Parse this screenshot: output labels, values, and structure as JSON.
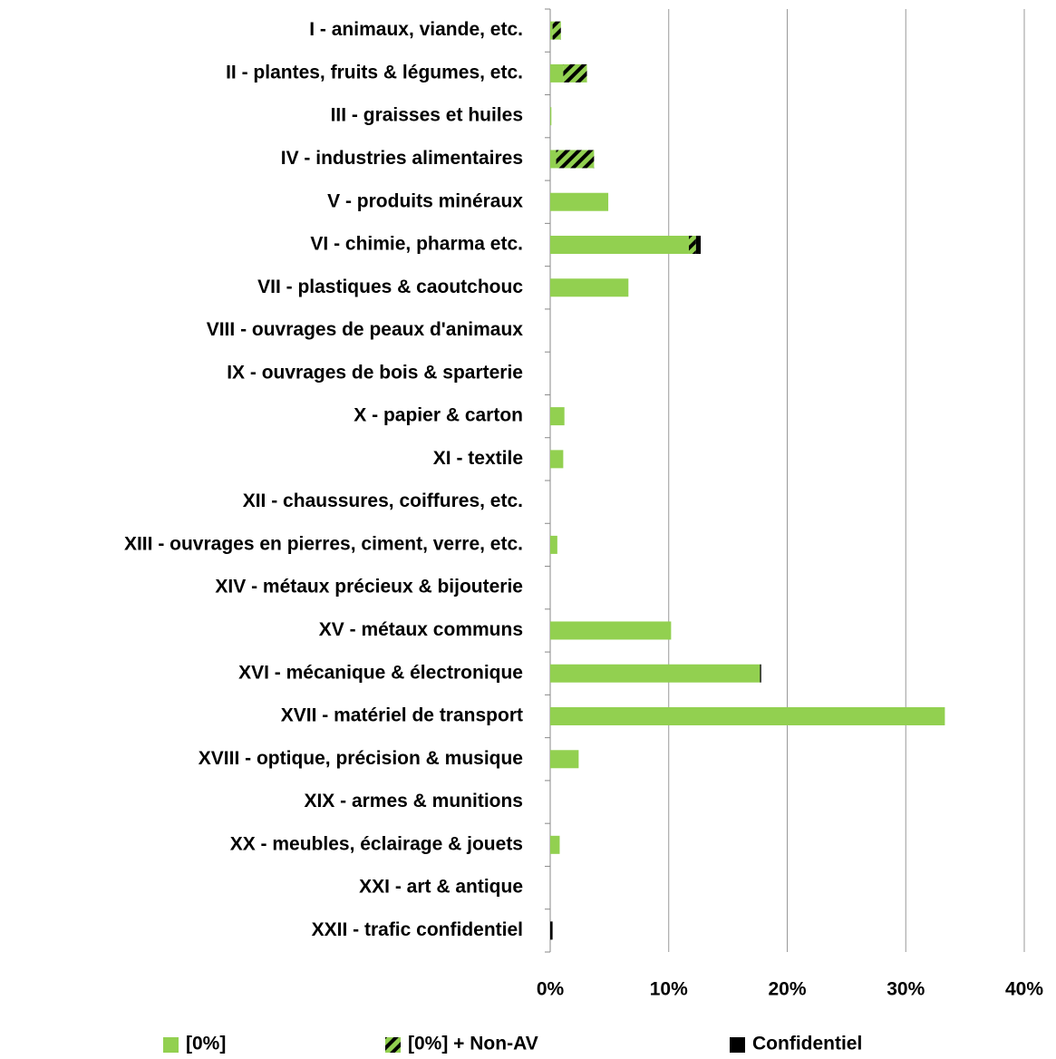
{
  "chart_data": {
    "type": "stacked_barh",
    "categories": [
      "I - animaux, viande, etc.",
      "II - plantes, fruits & légumes, etc.",
      "III - graisses et huiles",
      "IV - industries alimentaires",
      "V - produits minéraux",
      "VI - chimie, pharma etc.",
      "VII - plastiques & caoutchouc",
      "VIII - ouvrages de peaux d'animaux",
      "IX - ouvrages de bois & sparterie",
      "X - papier & carton",
      "XI - textile",
      "XII - chaussures, coiffures, etc.",
      "XIII - ouvrages en pierres, ciment, verre, etc.",
      "XIV - métaux précieux & bijouterie",
      "XV - métaux communs",
      "XVI - mécanique & électronique",
      "XVII - matériel de transport",
      "XVIII - optique, précision & musique",
      "XIX - armes & munitions",
      "XX - meubles, éclairage & jouets",
      "XXI - art & antique",
      "XXII - trafic confidentiel"
    ],
    "series": [
      {
        "name": "[0%]",
        "color": "#92d050",
        "values": [
          0.2,
          1.1,
          0.1,
          0.5,
          4.9,
          11.7,
          6.6,
          0,
          0,
          1.2,
          1.1,
          0,
          0.6,
          0,
          10.2,
          17.7,
          33.3,
          2.4,
          0,
          0.8,
          0,
          0
        ]
      },
      {
        "name": "[0%] + Non-AV",
        "color": "#92d050",
        "hatch": true,
        "values": [
          0.7,
          2.0,
          0,
          3.2,
          0,
          0.6,
          0,
          0,
          0,
          0,
          0,
          0,
          0,
          0,
          0,
          0,
          0,
          0,
          0,
          0,
          0,
          0
        ]
      },
      {
        "name": "Confidentiel",
        "color": "#000000",
        "values": [
          0,
          0,
          0,
          0,
          0,
          0.4,
          0,
          0,
          0,
          0,
          0,
          0,
          0,
          0,
          0,
          0.1,
          0,
          0,
          0,
          0,
          0,
          0.2
        ]
      }
    ],
    "xlim": [
      0,
      40
    ],
    "xticks": [
      {
        "value": 0,
        "label": "0%"
      },
      {
        "value": 10,
        "label": "10%"
      },
      {
        "value": 20,
        "label": "20%"
      },
      {
        "value": 30,
        "label": "30%"
      },
      {
        "value": 40,
        "label": "40%"
      }
    ],
    "grid": true,
    "legend": "bottom"
  }
}
